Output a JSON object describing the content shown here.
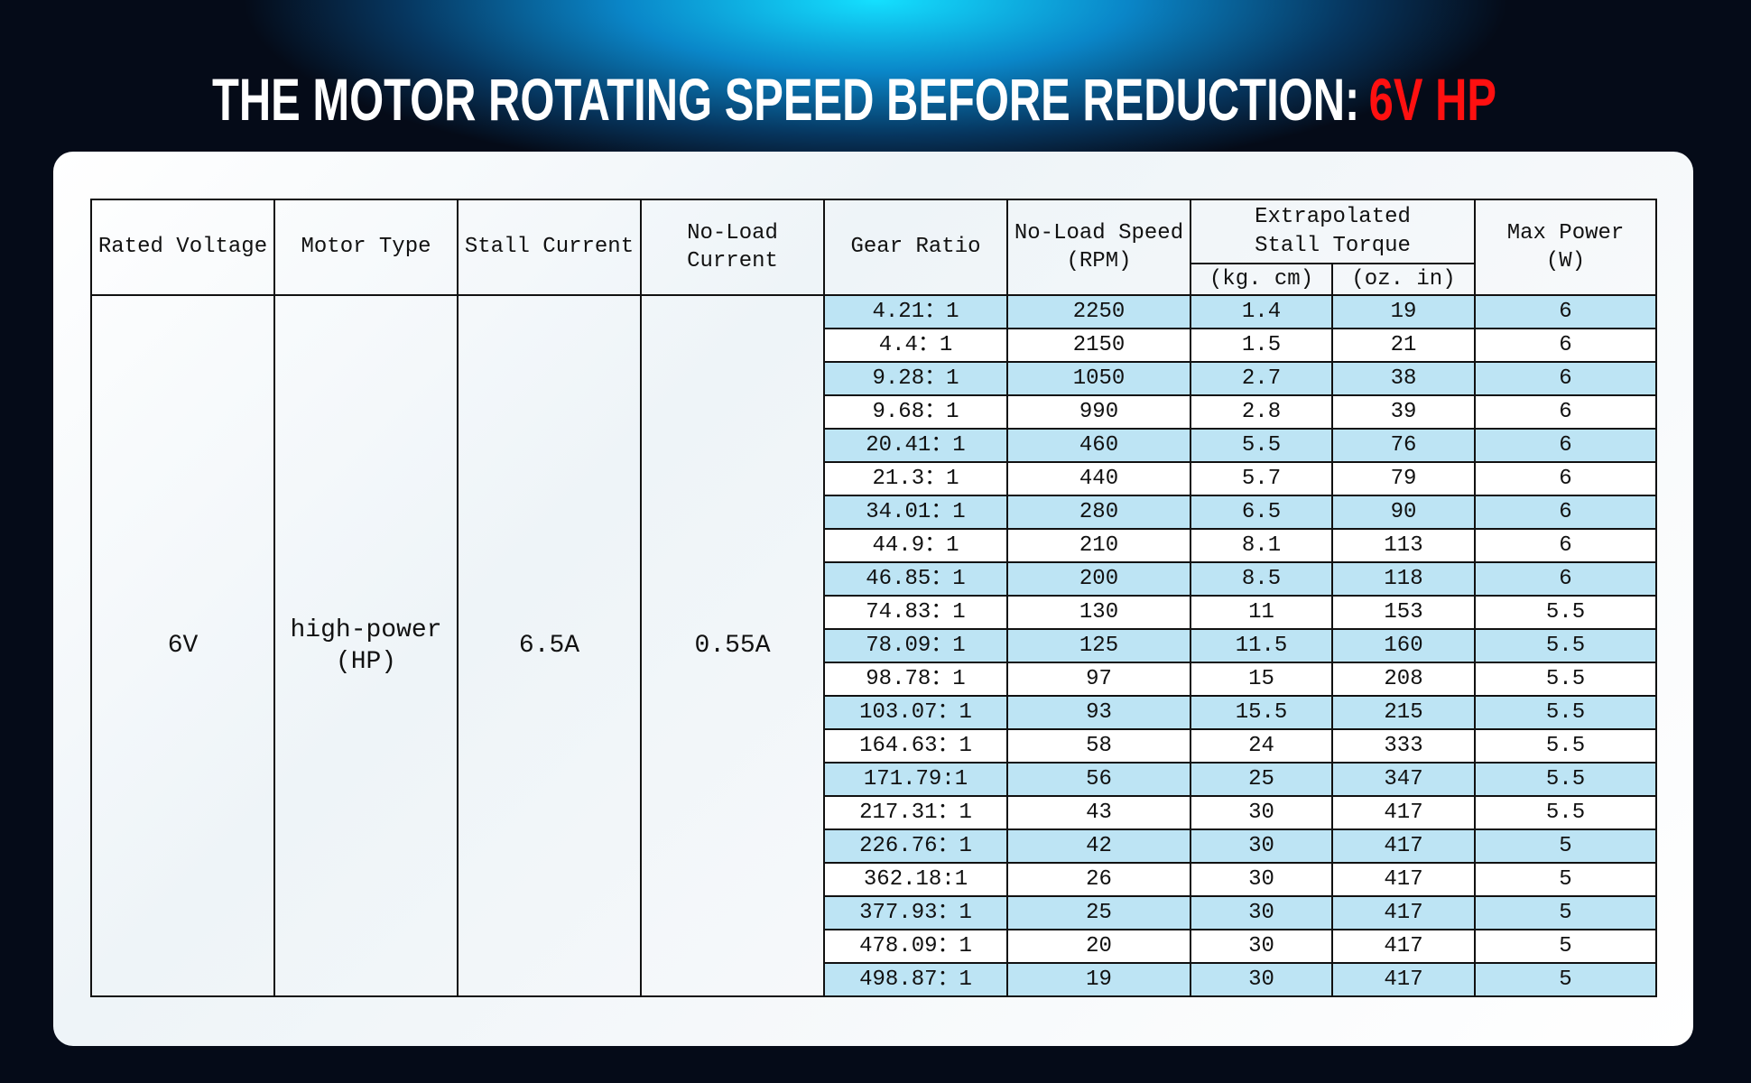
{
  "title": {
    "text": "THE MOTOR ROTATING SPEED BEFORE REDUCTION:",
    "highlight": "6V HP"
  },
  "table": {
    "header": [
      "Rated Voltage",
      "Motor Type",
      "Stall Current",
      "No-Load\nCurrent",
      "Gear Ratio",
      "No-Load Speed\n(RPM)",
      "Extrapolated\nStall Torque",
      "Max Power\n(W)"
    ],
    "subheader": [
      "(kg. cm)",
      "(oz. in)"
    ],
    "common": [
      "6V",
      "high-power\n(HP)",
      "6.5A",
      "0.55A"
    ],
    "rows": [
      [
        "4.21：1",
        2250,
        1.4,
        19,
        6
      ],
      [
        "4.4：1",
        2150,
        1.5,
        21,
        6
      ],
      [
        "9.28：1",
        1050,
        2.7,
        38,
        6
      ],
      [
        "9.68：1",
        990,
        2.8,
        39,
        6
      ],
      [
        "20.41：1",
        460,
        5.5,
        76,
        6
      ],
      [
        "21.3：1",
        440,
        5.7,
        79,
        6
      ],
      [
        "34.01：1",
        280,
        6.5,
        90,
        6
      ],
      [
        "44.9：1",
        210,
        8.1,
        113,
        6
      ],
      [
        "46.85：1",
        200,
        8.5,
        118,
        6
      ],
      [
        "74.83：1",
        130,
        11,
        153,
        5.5
      ],
      [
        "78.09：1",
        125,
        11.5,
        160,
        5.5
      ],
      [
        "98.78：1",
        97,
        15,
        208,
        5.5
      ],
      [
        "103.07：1",
        93,
        15.5,
        215,
        5.5
      ],
      [
        "164.63：1",
        58,
        24,
        333,
        5.5
      ],
      [
        "171.79:1",
        56,
        25,
        347,
        5.5
      ],
      [
        "217.31：1",
        43,
        30,
        417,
        5.5
      ],
      [
        "226.76：1",
        42,
        30,
        417,
        5
      ],
      [
        "362.18:1",
        26,
        30,
        417,
        5
      ],
      [
        "377.93：1",
        25,
        30,
        417,
        5
      ],
      [
        "478.09：1",
        20,
        30,
        417,
        5
      ],
      [
        "498.87：1",
        19,
        30,
        417,
        5
      ]
    ]
  }
}
